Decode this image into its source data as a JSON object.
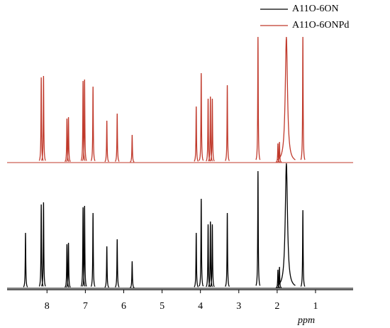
{
  "chart_data": {
    "type": "nmr",
    "x_label": "ppm",
    "xlim": [
      9.04,
      0.02
    ],
    "xticks": [
      8,
      7,
      6,
      5,
      4,
      3,
      2,
      1
    ],
    "ylim": [
      0,
      180
    ],
    "series": [
      {
        "name": "A11O-6ON",
        "color": "#000000",
        "x": [
          8.56,
          8.15,
          8.09,
          7.48,
          7.44,
          7.06,
          7.02,
          6.8,
          6.44,
          6.17,
          5.78,
          4.11,
          3.98,
          3.8,
          3.74,
          3.69,
          3.3,
          2.5,
          1.98,
          1.94,
          1.76,
          1.33
        ],
        "values": [
          78,
          118,
          121,
          62,
          64,
          114,
          116,
          106,
          59,
          69,
          38,
          78,
          126,
          90,
          94,
          90,
          106,
          165,
          26,
          30,
          176,
          110
        ]
      },
      {
        "name": "A11O-6ONPd",
        "color": "#c0392b",
        "x": [
          8.15,
          8.09,
          7.48,
          7.44,
          7.06,
          7.02,
          6.8,
          6.44,
          6.17,
          5.78,
          4.11,
          3.98,
          3.8,
          3.74,
          3.69,
          3.3,
          2.5,
          1.98,
          1.94,
          1.76,
          1.33
        ],
        "values": [
          120,
          122,
          62,
          64,
          115,
          117,
          107,
          59,
          69,
          39,
          79,
          126,
          90,
          93,
          90,
          109,
          177,
          27,
          29,
          177,
          177
        ]
      }
    ]
  }
}
